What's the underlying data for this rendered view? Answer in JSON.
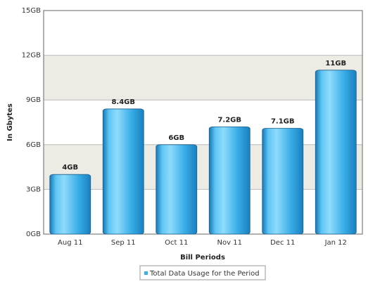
{
  "chart_data": {
    "type": "bar",
    "x_label": "Bill Periods",
    "y_label": "In Gbytes",
    "categories": [
      "Aug 11",
      "Sep 11",
      "Oct 11",
      "Nov 11",
      "Dec 11",
      "Jan 12"
    ],
    "series": [
      {
        "name": "Total Data Usage for the Period",
        "color": "#3aaee6",
        "values": [
          4,
          8.4,
          6,
          7.2,
          7.1,
          11
        ],
        "value_labels": [
          "4GB",
          "8.4GB",
          "6GB",
          "7.2GB",
          "7.1GB",
          "11GB"
        ]
      }
    ],
    "ylim": [
      0,
      15
    ],
    "yticks": [
      {
        "value": 0,
        "label": "0GB"
      },
      {
        "value": 3,
        "label": "3GB"
      },
      {
        "value": 6,
        "label": "6GB"
      },
      {
        "value": 9,
        "label": "9GB"
      },
      {
        "value": 12,
        "label": "12GB"
      },
      {
        "value": 15,
        "label": "15GB"
      }
    ],
    "grid": true,
    "legend": "bottom"
  }
}
